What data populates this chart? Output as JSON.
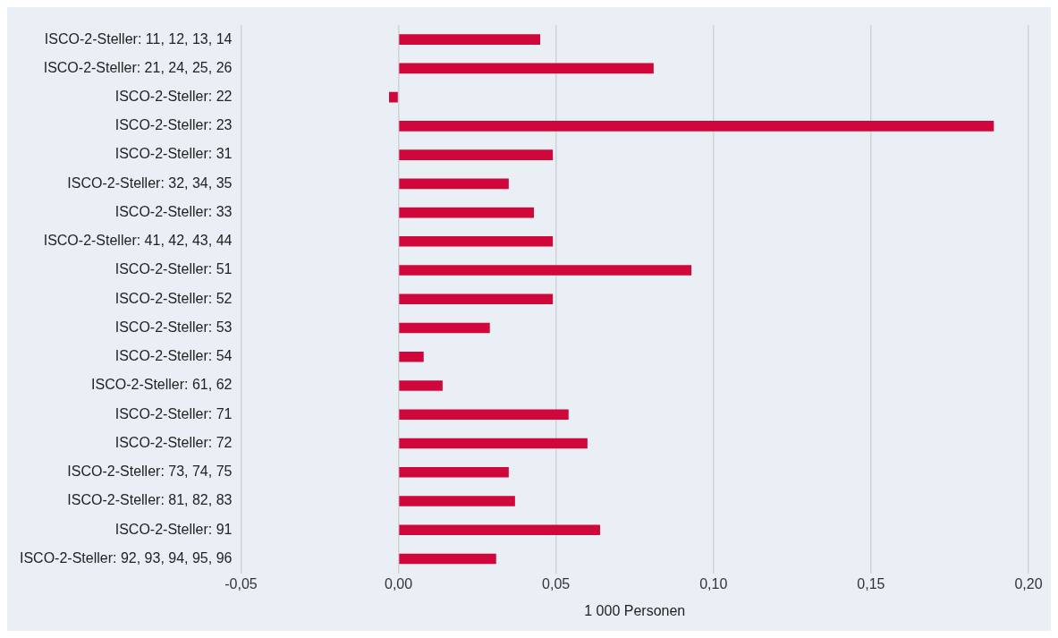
{
  "chart_data": {
    "type": "bar",
    "orientation": "horizontal",
    "xlabel": "1 000 Personen",
    "categories": [
      "ISCO-2-Steller: 11, 12, 13, 14",
      "ISCO-2-Steller: 21, 24, 25, 26",
      "ISCO-2-Steller: 22",
      "ISCO-2-Steller: 23",
      "ISCO-2-Steller: 31",
      "ISCO-2-Steller: 32, 34, 35",
      "ISCO-2-Steller: 33",
      "ISCO-2-Steller: 41, 42, 43, 44",
      "ISCO-2-Steller: 51",
      "ISCO-2-Steller: 52",
      "ISCO-2-Steller: 53",
      "ISCO-2-Steller: 54",
      "ISCO-2-Steller: 61, 62",
      "ISCO-2-Steller: 71",
      "ISCO-2-Steller: 72",
      "ISCO-2-Steller: 73, 74, 75",
      "ISCO-2-Steller: 81, 82, 83",
      "ISCO-2-Steller: 91",
      "ISCO-2-Steller: 92, 93, 94, 95, 96"
    ],
    "values": [
      0.045,
      0.081,
      -0.003,
      0.189,
      0.049,
      0.035,
      0.043,
      0.049,
      0.093,
      0.049,
      0.029,
      0.008,
      0.014,
      0.054,
      0.06,
      0.035,
      0.037,
      0.064,
      0.031
    ],
    "color": "#d0073a",
    "xlim": [
      -0.05,
      0.2
    ],
    "xticks": [
      {
        "value": -0.05,
        "label": "-0,05"
      },
      {
        "value": 0,
        "label": "0,00"
      },
      {
        "value": 0.05,
        "label": "0,05"
      },
      {
        "value": 0.1,
        "label": "0,10"
      },
      {
        "value": 0.15,
        "label": "0,15"
      },
      {
        "value": 0.2,
        "label": "0,20"
      }
    ],
    "grid": "x",
    "legend": false
  }
}
